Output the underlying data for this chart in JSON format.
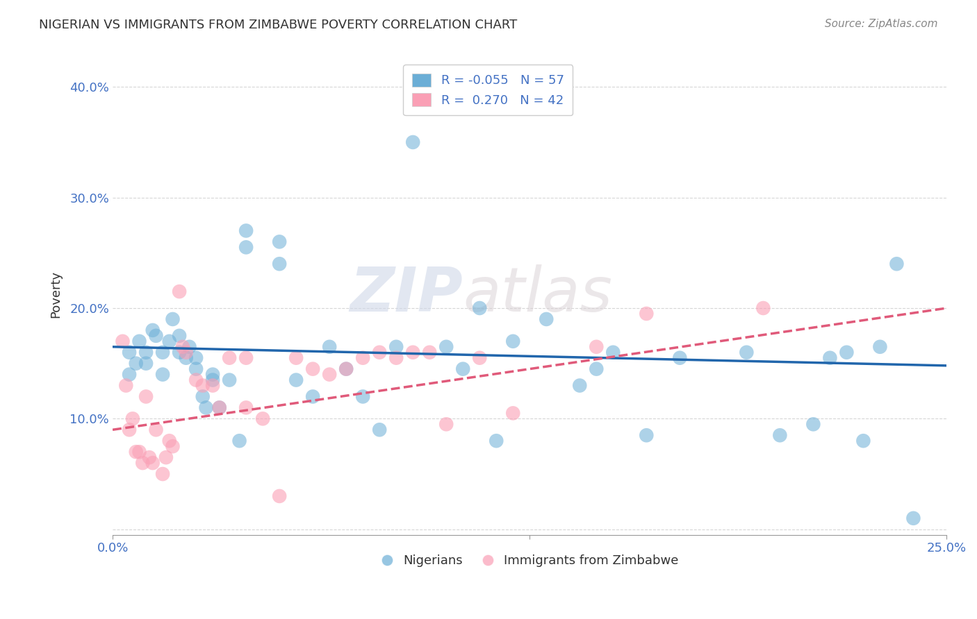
{
  "title": "NIGERIAN VS IMMIGRANTS FROM ZIMBABWE POVERTY CORRELATION CHART",
  "source": "Source: ZipAtlas.com",
  "ylabel": "Poverty",
  "yticks": [
    0.0,
    0.1,
    0.2,
    0.3,
    0.4
  ],
  "ytick_labels": [
    "",
    "10.0%",
    "20.0%",
    "30.0%",
    "40.0%"
  ],
  "xlim": [
    0.0,
    0.25
  ],
  "ylim": [
    -0.005,
    0.43
  ],
  "legend1_label": "R = -0.055   N = 57",
  "legend2_label": "R =  0.270   N = 42",
  "blue_color": "#6baed6",
  "pink_color": "#fa9fb5",
  "blue_line_color": "#2166ac",
  "pink_line_color": "#e05a7a",
  "axis_label_color": "#4472c4",
  "grid_color": "#cccccc",
  "watermark_zip": "ZIP",
  "watermark_atlas": "atlas",
  "nigerians_x": [
    0.005,
    0.005,
    0.007,
    0.008,
    0.01,
    0.01,
    0.012,
    0.013,
    0.015,
    0.015,
    0.017,
    0.018,
    0.02,
    0.02,
    0.022,
    0.023,
    0.025,
    0.025,
    0.027,
    0.028,
    0.03,
    0.03,
    0.032,
    0.035,
    0.038,
    0.04,
    0.04,
    0.05,
    0.05,
    0.055,
    0.06,
    0.065,
    0.07,
    0.075,
    0.08,
    0.085,
    0.09,
    0.1,
    0.105,
    0.11,
    0.115,
    0.12,
    0.13,
    0.14,
    0.145,
    0.15,
    0.16,
    0.17,
    0.19,
    0.2,
    0.21,
    0.215,
    0.22,
    0.225,
    0.23,
    0.235,
    0.24
  ],
  "nigerians_y": [
    0.16,
    0.14,
    0.15,
    0.17,
    0.15,
    0.16,
    0.18,
    0.175,
    0.14,
    0.16,
    0.17,
    0.19,
    0.175,
    0.16,
    0.155,
    0.165,
    0.145,
    0.155,
    0.12,
    0.11,
    0.14,
    0.135,
    0.11,
    0.135,
    0.08,
    0.255,
    0.27,
    0.26,
    0.24,
    0.135,
    0.12,
    0.165,
    0.145,
    0.12,
    0.09,
    0.165,
    0.35,
    0.165,
    0.145,
    0.2,
    0.08,
    0.17,
    0.19,
    0.13,
    0.145,
    0.16,
    0.085,
    0.155,
    0.16,
    0.085,
    0.095,
    0.155,
    0.16,
    0.08,
    0.165,
    0.24,
    0.01
  ],
  "zimbabwe_x": [
    0.003,
    0.004,
    0.005,
    0.006,
    0.007,
    0.008,
    0.009,
    0.01,
    0.011,
    0.012,
    0.013,
    0.015,
    0.016,
    0.017,
    0.018,
    0.02,
    0.021,
    0.022,
    0.025,
    0.027,
    0.03,
    0.032,
    0.035,
    0.04,
    0.04,
    0.045,
    0.05,
    0.055,
    0.06,
    0.065,
    0.07,
    0.075,
    0.08,
    0.085,
    0.09,
    0.095,
    0.1,
    0.11,
    0.12,
    0.145,
    0.16,
    0.195
  ],
  "zimbabwe_y": [
    0.17,
    0.13,
    0.09,
    0.1,
    0.07,
    0.07,
    0.06,
    0.12,
    0.065,
    0.06,
    0.09,
    0.05,
    0.065,
    0.08,
    0.075,
    0.215,
    0.165,
    0.16,
    0.135,
    0.13,
    0.13,
    0.11,
    0.155,
    0.155,
    0.11,
    0.1,
    0.03,
    0.155,
    0.145,
    0.14,
    0.145,
    0.155,
    0.16,
    0.155,
    0.16,
    0.16,
    0.095,
    0.155,
    0.105,
    0.165,
    0.195,
    0.2
  ],
  "blue_trendline_x": [
    0.0,
    0.25
  ],
  "blue_trendline_y": [
    0.165,
    0.148
  ],
  "pink_trendline_x": [
    0.0,
    0.25
  ],
  "pink_trendline_y": [
    0.09,
    0.2
  ]
}
